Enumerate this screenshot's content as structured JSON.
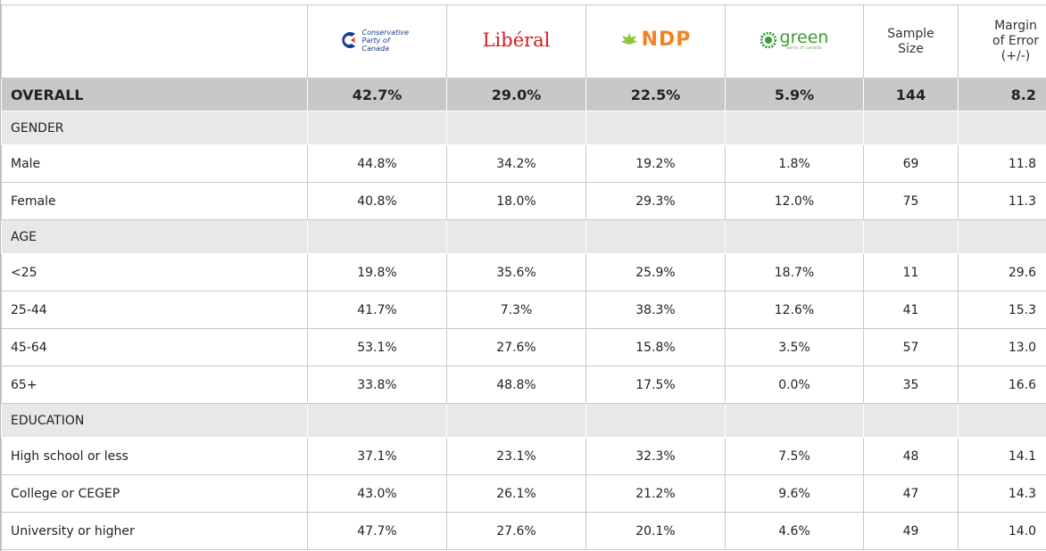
{
  "header": {
    "parties": [
      "Conservative Party of Canada",
      "Libéral",
      "NDP",
      "green"
    ],
    "green_sub": "party of canada",
    "stats": [
      "Sample Size",
      "Margin of Error (+/-)"
    ]
  },
  "overall": {
    "label": "OVERALL",
    "values": [
      "42.7%",
      "29.0%",
      "22.5%",
      "5.9%",
      "144",
      "8.2"
    ]
  },
  "groups": [
    {
      "title": "GENDER",
      "rows": [
        {
          "label": "Male",
          "values": [
            "44.8%",
            "34.2%",
            "19.2%",
            "1.8%",
            "69",
            "11.8"
          ]
        },
        {
          "label": "Female",
          "values": [
            "40.8%",
            "18.0%",
            "29.3%",
            "12.0%",
            "75",
            "11.3"
          ]
        }
      ]
    },
    {
      "title": "AGE",
      "rows": [
        {
          "label": "<25",
          "values": [
            "19.8%",
            "35.6%",
            "25.9%",
            "18.7%",
            "11",
            "29.6"
          ]
        },
        {
          "label": "25-44",
          "values": [
            "41.7%",
            "7.3%",
            "38.3%",
            "12.6%",
            "41",
            "15.3"
          ]
        },
        {
          "label": "45-64",
          "values": [
            "53.1%",
            "27.6%",
            "15.8%",
            "3.5%",
            "57",
            "13.0"
          ]
        },
        {
          "label": "65+",
          "values": [
            "33.8%",
            "48.8%",
            "17.5%",
            "0.0%",
            "35",
            "16.6"
          ]
        }
      ]
    },
    {
      "title": "EDUCATION",
      "rows": [
        {
          "label": "High school or less",
          "values": [
            "37.1%",
            "23.1%",
            "32.3%",
            "7.5%",
            "48",
            "14.1"
          ]
        },
        {
          "label": "College or CEGEP",
          "values": [
            "43.0%",
            "26.1%",
            "21.2%",
            "9.6%",
            "47",
            "14.3"
          ]
        },
        {
          "label": "University or higher",
          "values": [
            "47.7%",
            "27.6%",
            "20.1%",
            "4.6%",
            "49",
            "14.0"
          ]
        }
      ]
    }
  ]
}
